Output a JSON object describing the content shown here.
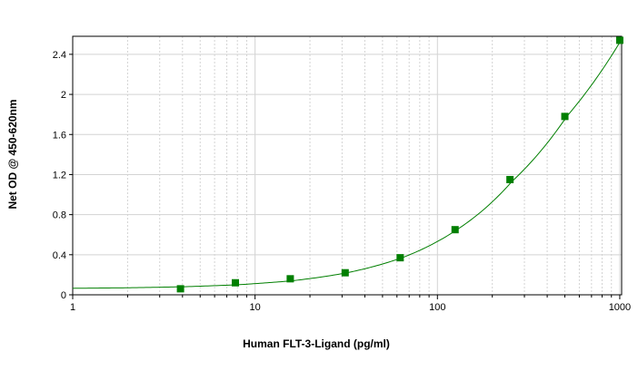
{
  "chart_data": {
    "type": "scatter",
    "title": "",
    "xlabel": "Human FLT-3-Ligand (pg/ml)",
    "ylabel": "Net OD @ 450-620nm",
    "x_scale": "log",
    "xlim": [
      1,
      1024
    ],
    "ylim": [
      0,
      2.58
    ],
    "x_ticks": [
      1,
      10,
      100,
      1000
    ],
    "x_tick_labels": [
      "1",
      "10",
      "100",
      "1000"
    ],
    "y_ticks": [
      0,
      0.4,
      0.8,
      1.2,
      1.6,
      2,
      2.4
    ],
    "y_tick_labels": [
      "0",
      "0.4",
      "0.8",
      "1.2",
      "1.6",
      "2",
      "2.4"
    ],
    "grid": true,
    "legend": "none",
    "colors": {
      "series": "#007f00",
      "grid": "#d3d3d3",
      "axis": "#000000"
    },
    "series": [
      {
        "x": [
          3.9,
          7.8,
          15.6,
          31.2,
          62.5,
          125,
          250,
          500,
          1000
        ],
        "y": [
          0.06,
          0.12,
          0.16,
          0.22,
          0.37,
          0.65,
          1.15,
          1.78,
          2.54
        ]
      }
    ],
    "fit_curve": {
      "x": [
        1,
        2,
        4,
        8,
        16,
        32,
        64,
        128,
        256,
        512,
        1024
      ],
      "y": [
        0.065,
        0.07,
        0.08,
        0.1,
        0.14,
        0.22,
        0.37,
        0.65,
        1.13,
        1.78,
        2.55
      ]
    }
  }
}
